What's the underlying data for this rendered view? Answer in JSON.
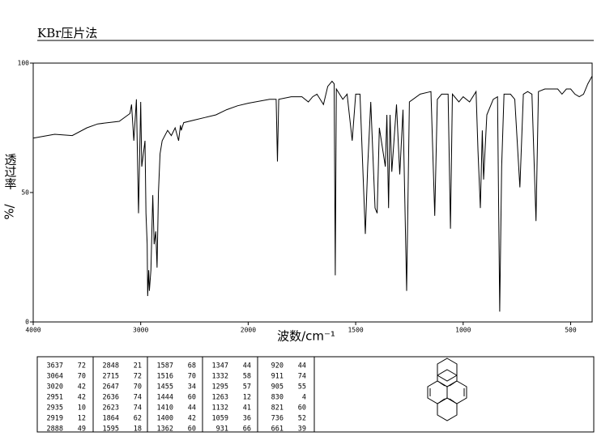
{
  "chart_data": {
    "type": "line",
    "title": "KBr压片法",
    "x_label": "波数/cm⁻¹",
    "y_label": "透过率",
    "y_unit": "%/",
    "xlim": [
      4000,
      400
    ],
    "xticks": [
      4000,
      3000,
      2000,
      1500,
      1000,
      500
    ],
    "ylim": [
      0,
      100
    ],
    "yticks": [
      0,
      50,
      100
    ],
    "series": [
      {
        "color": "#000000",
        "x": [
          4000,
          3800,
          3637,
          3500,
          3400,
          3200,
          3100,
          3085,
          3064,
          3040,
          3020,
          3000,
          2990,
          2960,
          2951,
          2940,
          2935,
          2925,
          2919,
          2905,
          2888,
          2875,
          2860,
          2848,
          2835,
          2820,
          2800,
          2750,
          2715,
          2680,
          2647,
          2636,
          2630,
          2623,
          2600,
          2500,
          2400,
          2300,
          2200,
          2100,
          2000,
          1900,
          1870,
          1864,
          1858,
          1800,
          1750,
          1720,
          1700,
          1680,
          1650,
          1630,
          1610,
          1600,
          1595,
          1590,
          1560,
          1540,
          1516,
          1500,
          1480,
          1455,
          1444,
          1430,
          1410,
          1400,
          1390,
          1362,
          1355,
          1347,
          1340,
          1332,
          1310,
          1295,
          1280,
          1263,
          1250,
          1200,
          1150,
          1132,
          1120,
          1100,
          1070,
          1059,
          1050,
          1020,
          1000,
          970,
          940,
          931,
          920,
          911,
          905,
          890,
          860,
          840,
          830,
          821,
          810,
          780,
          760,
          736,
          720,
          700,
          680,
          661,
          650,
          620,
          600,
          560,
          540,
          520,
          500,
          480,
          460,
          440,
          420,
          400
        ],
        "values": [
          71,
          72.5,
          72,
          75,
          76.5,
          77.5,
          80.5,
          84,
          70,
          86,
          42,
          85,
          60,
          70,
          42,
          30,
          10,
          20,
          12,
          20,
          49,
          30,
          35,
          21,
          50,
          65,
          70,
          74,
          72,
          75,
          70,
          74,
          76,
          74,
          77,
          78,
          79,
          80,
          82,
          83.5,
          84.5,
          86,
          86,
          62,
          86,
          87,
          87,
          85,
          87,
          88,
          84,
          91,
          93,
          92,
          18,
          90,
          86,
          88,
          70,
          88,
          88,
          34,
          60,
          85,
          44,
          42,
          75,
          60,
          80,
          44,
          80,
          58,
          84,
          57,
          82,
          12,
          85,
          88,
          89,
          41,
          86,
          88,
          88,
          36,
          88,
          85,
          87,
          85,
          89,
          66,
          44,
          74,
          55,
          80,
          86,
          87,
          4,
          60,
          88,
          88,
          86,
          52,
          88,
          89,
          88,
          39,
          89,
          90,
          90,
          90,
          88,
          90,
          90,
          88,
          87,
          88,
          92,
          95
        ]
      }
    ]
  },
  "peak_table": [
    [
      [
        3637,
        72
      ],
      [
        3064,
        70
      ],
      [
        3020,
        42
      ],
      [
        2951,
        42
      ],
      [
        2935,
        10
      ],
      [
        2919,
        12
      ],
      [
        2888,
        49
      ]
    ],
    [
      [
        2848,
        21
      ],
      [
        2715,
        72
      ],
      [
        2647,
        70
      ],
      [
        2636,
        74
      ],
      [
        2623,
        74
      ],
      [
        1864,
        62
      ],
      [
        1595,
        18
      ]
    ],
    [
      [
        1587,
        68
      ],
      [
        1516,
        70
      ],
      [
        1455,
        34
      ],
      [
        1444,
        60
      ],
      [
        1410,
        44
      ],
      [
        1400,
        42
      ],
      [
        1362,
        60
      ]
    ],
    [
      [
        1347,
        44
      ],
      [
        1332,
        58
      ],
      [
        1295,
        57
      ],
      [
        1263,
        12
      ],
      [
        1132,
        41
      ],
      [
        1059,
        36
      ],
      [
        931,
        66
      ]
    ],
    [
      [
        920,
        44
      ],
      [
        911,
        74
      ],
      [
        905,
        55
      ],
      [
        830,
        4
      ],
      [
        821,
        60
      ],
      [
        736,
        52
      ],
      [
        661,
        39
      ]
    ]
  ]
}
